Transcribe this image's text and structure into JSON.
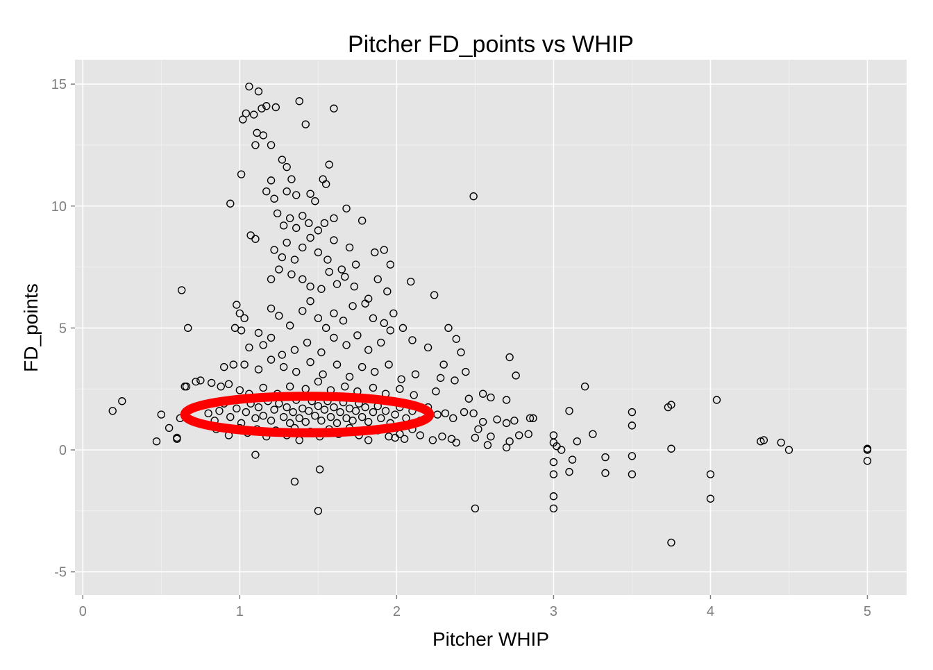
{
  "chart_data": {
    "type": "scatter",
    "title": "Pitcher FD_points vs WHIP",
    "xlabel": "Pitcher WHIP",
    "ylabel": "FD_points",
    "xlim": [
      -0.05,
      5.25
    ],
    "ylim": [
      -5.95,
      16.0
    ],
    "x_ticks": [
      0,
      1,
      2,
      3,
      4,
      5
    ],
    "x_tick_labels": [
      "0",
      "1",
      "2",
      "3",
      "4",
      "5"
    ],
    "y_ticks": [
      -5,
      0,
      5,
      10,
      15
    ],
    "y_tick_labels": [
      "-5",
      "0",
      "5",
      "10",
      "15"
    ],
    "grid": true,
    "legend": "none",
    "marker": "open-circle",
    "colors": {
      "panel": "#e5e5e5",
      "points": "#000000",
      "annotation": "#ff0000"
    },
    "annotation": {
      "shape": "ellipse",
      "center": [
        1.43,
        1.45
      ],
      "x_radius": 0.78,
      "y_radius": 0.75
    },
    "series": [
      {
        "values": [
          [
            0.19,
            1.6
          ],
          [
            0.25,
            2.0
          ],
          [
            0.47,
            0.35
          ],
          [
            0.5,
            1.45
          ],
          [
            0.55,
            0.9
          ],
          [
            0.6,
            0.45
          ],
          [
            0.6,
            0.5
          ],
          [
            0.63,
            6.55
          ],
          [
            0.67,
            5.0
          ],
          [
            0.65,
            2.6
          ],
          [
            0.72,
            2.8
          ],
          [
            0.75,
            2.85
          ],
          [
            0.94,
            10.1
          ],
          [
            1.01,
            11.3
          ],
          [
            1.02,
            13.55
          ],
          [
            1.04,
            13.8
          ],
          [
            1.06,
            14.9
          ],
          [
            1.09,
            13.75
          ],
          [
            1.11,
            13.0
          ],
          [
            1.12,
            14.7
          ],
          [
            1.14,
            14.0
          ],
          [
            1.17,
            14.1
          ],
          [
            1.23,
            14.05
          ],
          [
            1.38,
            14.3
          ],
          [
            1.42,
            13.35
          ],
          [
            1.6,
            14.0
          ],
          [
            1.1,
            12.5
          ],
          [
            1.15,
            12.9
          ],
          [
            1.2,
            12.5
          ],
          [
            1.27,
            11.9
          ],
          [
            1.3,
            11.6
          ],
          [
            1.33,
            11.1
          ],
          [
            1.53,
            11.1
          ],
          [
            1.57,
            11.7
          ],
          [
            1.2,
            11.05
          ],
          [
            1.17,
            10.6
          ],
          [
            1.22,
            10.3
          ],
          [
            1.3,
            10.6
          ],
          [
            1.36,
            10.45
          ],
          [
            1.45,
            10.5
          ],
          [
            1.48,
            10.2
          ],
          [
            1.55,
            10.9
          ],
          [
            2.49,
            10.4
          ],
          [
            1.07,
            8.8
          ],
          [
            1.1,
            8.65
          ],
          [
            1.24,
            9.7
          ],
          [
            1.28,
            9.2
          ],
          [
            1.32,
            9.5
          ],
          [
            1.36,
            9.1
          ],
          [
            1.4,
            9.6
          ],
          [
            1.44,
            9.3
          ],
          [
            1.5,
            9.0
          ],
          [
            1.54,
            9.3
          ],
          [
            1.6,
            9.5
          ],
          [
            1.68,
            9.9
          ],
          [
            1.78,
            9.4
          ],
          [
            1.22,
            8.2
          ],
          [
            1.27,
            7.9
          ],
          [
            1.3,
            8.5
          ],
          [
            1.35,
            7.8
          ],
          [
            1.4,
            8.3
          ],
          [
            1.45,
            8.7
          ],
          [
            1.5,
            8.1
          ],
          [
            1.56,
            7.8
          ],
          [
            1.6,
            8.6
          ],
          [
            1.65,
            7.4
          ],
          [
            1.7,
            8.3
          ],
          [
            1.74,
            7.6
          ],
          [
            1.86,
            8.1
          ],
          [
            1.92,
            8.2
          ],
          [
            1.96,
            7.6
          ],
          [
            1.2,
            7.0
          ],
          [
            1.25,
            7.4
          ],
          [
            1.33,
            7.2
          ],
          [
            1.4,
            7.0
          ],
          [
            1.45,
            6.7
          ],
          [
            1.52,
            6.6
          ],
          [
            1.57,
            7.3
          ],
          [
            1.62,
            6.8
          ],
          [
            1.67,
            7.1
          ],
          [
            1.73,
            6.7
          ],
          [
            1.82,
            6.2
          ],
          [
            1.88,
            7.0
          ],
          [
            1.94,
            6.5
          ],
          [
            2.09,
            6.9
          ],
          [
            2.24,
            6.35
          ],
          [
            0.98,
            5.95
          ],
          [
            1.0,
            5.6
          ],
          [
            1.03,
            5.4
          ],
          [
            1.2,
            5.8
          ],
          [
            1.25,
            5.5
          ],
          [
            1.32,
            5.1
          ],
          [
            1.4,
            5.7
          ],
          [
            1.45,
            6.1
          ],
          [
            1.5,
            5.4
          ],
          [
            1.55,
            5.0
          ],
          [
            1.6,
            5.6
          ],
          [
            1.66,
            5.3
          ],
          [
            1.72,
            5.9
          ],
          [
            1.8,
            6.0
          ],
          [
            1.85,
            5.4
          ],
          [
            1.92,
            5.2
          ],
          [
            1.98,
            5.6
          ],
          [
            2.04,
            5.0
          ],
          [
            2.33,
            5.0
          ],
          [
            2.38,
            4.55
          ],
          [
            0.97,
            5.0
          ],
          [
            1.01,
            4.9
          ],
          [
            1.06,
            4.2
          ],
          [
            1.12,
            4.8
          ],
          [
            1.15,
            4.3
          ],
          [
            1.2,
            4.6
          ],
          [
            1.27,
            3.9
          ],
          [
            1.35,
            4.1
          ],
          [
            1.43,
            4.4
          ],
          [
            1.52,
            4.0
          ],
          [
            1.6,
            4.6
          ],
          [
            1.68,
            4.3
          ],
          [
            1.75,
            4.7
          ],
          [
            1.82,
            4.1
          ],
          [
            1.9,
            4.4
          ],
          [
            1.96,
            4.9
          ],
          [
            2.1,
            4.5
          ],
          [
            2.2,
            4.2
          ],
          [
            2.41,
            4.0
          ],
          [
            0.9,
            3.4
          ],
          [
            0.96,
            3.5
          ],
          [
            1.03,
            3.5
          ],
          [
            1.12,
            3.3
          ],
          [
            1.2,
            3.7
          ],
          [
            1.28,
            3.4
          ],
          [
            1.36,
            3.2
          ],
          [
            1.45,
            3.6
          ],
          [
            1.53,
            3.1
          ],
          [
            1.62,
            3.5
          ],
          [
            1.7,
            3.0
          ],
          [
            1.78,
            3.4
          ],
          [
            1.86,
            3.2
          ],
          [
            1.95,
            3.5
          ],
          [
            2.03,
            2.9
          ],
          [
            2.12,
            3.1
          ],
          [
            2.3,
            3.5
          ],
          [
            2.28,
            2.95
          ],
          [
            2.44,
            3.2
          ],
          [
            2.72,
            3.8
          ],
          [
            2.76,
            3.05
          ],
          [
            0.66,
            2.6
          ],
          [
            0.82,
            2.75
          ],
          [
            0.88,
            2.6
          ],
          [
            0.93,
            2.7
          ],
          [
            1.0,
            2.45
          ],
          [
            1.06,
            2.3
          ],
          [
            1.15,
            2.55
          ],
          [
            1.24,
            2.3
          ],
          [
            1.32,
            2.6
          ],
          [
            1.42,
            2.5
          ],
          [
            1.5,
            2.8
          ],
          [
            1.58,
            2.45
          ],
          [
            1.67,
            2.6
          ],
          [
            1.75,
            2.4
          ],
          [
            1.85,
            2.55
          ],
          [
            1.93,
            2.3
          ],
          [
            2.02,
            2.5
          ],
          [
            2.11,
            2.25
          ],
          [
            2.25,
            2.4
          ],
          [
            2.37,
            2.85
          ],
          [
            2.46,
            2.1
          ],
          [
            2.55,
            2.3
          ],
          [
            2.6,
            2.15
          ],
          [
            2.7,
            2.05
          ],
          [
            3.2,
            2.6
          ],
          [
            3.73,
            1.75
          ],
          [
            3.75,
            1.85
          ],
          [
            4.04,
            2.05
          ],
          [
            0.62,
            1.3
          ],
          [
            0.75,
            1.8
          ],
          [
            0.8,
            1.5
          ],
          [
            0.84,
            1.2
          ],
          [
            0.87,
            1.6
          ],
          [
            0.9,
            1.9
          ],
          [
            0.94,
            1.35
          ],
          [
            0.98,
            1.7
          ],
          [
            1.01,
            1.1
          ],
          [
            1.04,
            1.55
          ],
          [
            1.07,
            1.9
          ],
          [
            1.1,
            1.3
          ],
          [
            1.12,
            1.75
          ],
          [
            1.15,
            1.4
          ],
          [
            1.18,
            2.0
          ],
          [
            1.2,
            1.2
          ],
          [
            1.22,
            1.65
          ],
          [
            1.25,
            1.9
          ],
          [
            1.28,
            1.35
          ],
          [
            1.3,
            1.75
          ],
          [
            1.32,
            1.1
          ],
          [
            1.34,
            1.55
          ],
          [
            1.36,
            2.05
          ],
          [
            1.38,
            1.3
          ],
          [
            1.4,
            1.7
          ],
          [
            1.42,
            1.15
          ],
          [
            1.44,
            1.6
          ],
          [
            1.46,
            2.0
          ],
          [
            1.48,
            1.4
          ],
          [
            1.5,
            1.8
          ],
          [
            1.52,
            1.2
          ],
          [
            1.54,
            1.65
          ],
          [
            1.56,
            2.0
          ],
          [
            1.58,
            1.35
          ],
          [
            1.6,
            1.75
          ],
          [
            1.62,
            1.1
          ],
          [
            1.64,
            1.55
          ],
          [
            1.66,
            1.95
          ],
          [
            1.68,
            1.3
          ],
          [
            1.7,
            1.7
          ],
          [
            1.72,
            1.2
          ],
          [
            1.74,
            1.6
          ],
          [
            1.76,
            1.9
          ],
          [
            1.78,
            1.35
          ],
          [
            1.8,
            1.75
          ],
          [
            1.82,
            1.15
          ],
          [
            1.85,
            1.55
          ],
          [
            1.88,
            1.8
          ],
          [
            1.9,
            1.3
          ],
          [
            1.93,
            1.6
          ],
          [
            1.96,
            1.1
          ],
          [
            1.99,
            1.45
          ],
          [
            2.02,
            1.75
          ],
          [
            2.06,
            1.3
          ],
          [
            2.1,
            1.6
          ],
          [
            2.15,
            1.2
          ],
          [
            2.2,
            1.75
          ],
          [
            2.26,
            1.45
          ],
          [
            2.31,
            1.5
          ],
          [
            2.36,
            1.3
          ],
          [
            2.43,
            1.55
          ],
          [
            2.49,
            1.5
          ],
          [
            2.55,
            1.15
          ],
          [
            2.64,
            1.25
          ],
          [
            2.7,
            1.1
          ],
          [
            2.75,
            1.2
          ],
          [
            2.85,
            1.3
          ],
          [
            2.87,
            1.3
          ],
          [
            3.1,
            1.6
          ],
          [
            3.5,
            1.55
          ],
          [
            3.5,
            1.0
          ],
          [
            0.85,
            0.85
          ],
          [
            0.93,
            0.6
          ],
          [
            1.0,
            0.9
          ],
          [
            1.05,
            0.7
          ],
          [
            1.11,
            0.85
          ],
          [
            1.17,
            0.55
          ],
          [
            1.23,
            0.8
          ],
          [
            1.3,
            0.6
          ],
          [
            1.35,
            0.9
          ],
          [
            1.38,
            0.4
          ],
          [
            1.45,
            0.75
          ],
          [
            1.51,
            0.55
          ],
          [
            1.57,
            0.85
          ],
          [
            1.63,
            0.65
          ],
          [
            1.7,
            0.9
          ],
          [
            1.76,
            0.6
          ],
          [
            1.82,
            0.4
          ],
          [
            1.88,
            0.8
          ],
          [
            1.95,
            0.55
          ],
          [
            1.99,
            0.5
          ],
          [
            2.02,
            0.65
          ],
          [
            2.05,
            0.45
          ],
          [
            2.1,
            0.85
          ],
          [
            2.15,
            0.6
          ],
          [
            2.23,
            0.4
          ],
          [
            2.29,
            0.55
          ],
          [
            2.35,
            0.45
          ],
          [
            2.38,
            0.3
          ],
          [
            2.5,
            0.5
          ],
          [
            2.52,
            0.85
          ],
          [
            2.58,
            0.2
          ],
          [
            2.6,
            0.55
          ],
          [
            2.7,
            0.1
          ],
          [
            2.72,
            0.35
          ],
          [
            2.78,
            0.6
          ],
          [
            2.84,
            0.65
          ],
          [
            3.0,
            0.6
          ],
          [
            3.0,
            0.3
          ],
          [
            3.02,
            0.15
          ],
          [
            3.05,
            0.0
          ],
          [
            3.15,
            0.35
          ],
          [
            3.25,
            0.65
          ],
          [
            3.75,
            0.05
          ],
          [
            4.32,
            0.35
          ],
          [
            4.34,
            0.4
          ],
          [
            4.45,
            0.3
          ],
          [
            4.5,
            0.0
          ],
          [
            5.0,
            0.05
          ],
          [
            5.0,
            0.0
          ],
          [
            1.1,
            -0.2
          ],
          [
            1.35,
            -1.3
          ],
          [
            1.51,
            -0.8
          ],
          [
            1.5,
            -2.5
          ],
          [
            2.5,
            -2.4
          ],
          [
            3.0,
            -0.5
          ],
          [
            3.0,
            -1.0
          ],
          [
            3.0,
            -1.9
          ],
          [
            3.0,
            -2.4
          ],
          [
            3.1,
            -0.9
          ],
          [
            3.12,
            -0.4
          ],
          [
            3.33,
            -0.3
          ],
          [
            3.33,
            -0.95
          ],
          [
            3.5,
            -0.25
          ],
          [
            3.5,
            -1.0
          ],
          [
            3.75,
            -3.8
          ],
          [
            4.0,
            -1.0
          ],
          [
            4.0,
            -2.0
          ],
          [
            5.0,
            -0.45
          ]
        ]
      }
    ]
  }
}
